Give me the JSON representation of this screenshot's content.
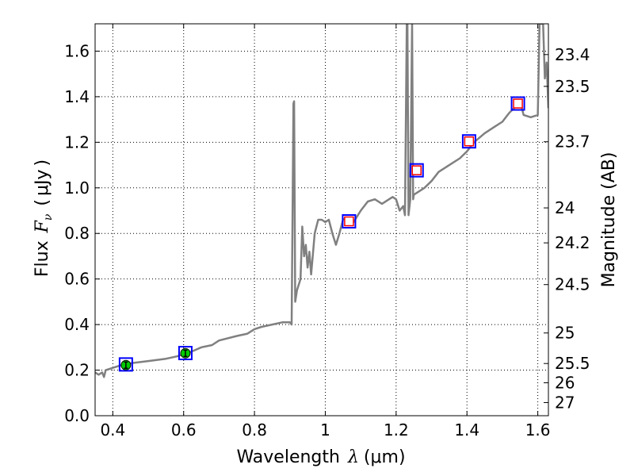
{
  "chart_data": {
    "type": "line",
    "title": "",
    "xlabel": "Wavelength",
    "xlabel_symbol": "λ",
    "xlabel_unit": "μm",
    "ylabel": "Flux",
    "ylabel_symbol": "F",
    "ylabel_subscript": "ν",
    "ylabel_unit": "μJy",
    "y2label": "Magnitude (AB)",
    "xlim": [
      0.35,
      1.63
    ],
    "ylim": [
      0.0,
      1.72
    ],
    "xticks": [
      "0.4",
      "0.6",
      "0.8",
      "1",
      "1.2",
      "1.4",
      "1.6"
    ],
    "xtick_values": [
      0.4,
      0.6,
      0.8,
      1.0,
      1.2,
      1.4,
      1.6
    ],
    "yticks": [
      "0.0",
      "0.2",
      "0.4",
      "0.6",
      "0.8",
      "1.0",
      "1.2",
      "1.4",
      "1.6"
    ],
    "ytick_values": [
      0.0,
      0.2,
      0.4,
      0.6,
      0.8,
      1.0,
      1.2,
      1.4,
      1.6
    ],
    "y2ticks": [
      "23.4",
      "23.5",
      "23.7",
      "24",
      "24.2",
      "24.5",
      "25",
      "25.5",
      "26",
      "27"
    ],
    "y2tick_values": [
      23.4,
      23.5,
      23.7,
      24,
      24.2,
      24.5,
      25,
      25.5,
      26,
      27
    ],
    "grid": true,
    "series": [
      {
        "kind": "spectrum",
        "color": "#808080",
        "points": [
          [
            0.35,
            0.19
          ],
          [
            0.36,
            0.18
          ],
          [
            0.37,
            0.19
          ],
          [
            0.375,
            0.17
          ],
          [
            0.38,
            0.2
          ],
          [
            0.4,
            0.21
          ],
          [
            0.42,
            0.22
          ],
          [
            0.45,
            0.23
          ],
          [
            0.5,
            0.24
          ],
          [
            0.55,
            0.25
          ],
          [
            0.58,
            0.26
          ],
          [
            0.6,
            0.27
          ],
          [
            0.62,
            0.28
          ],
          [
            0.65,
            0.3
          ],
          [
            0.68,
            0.31
          ],
          [
            0.7,
            0.33
          ],
          [
            0.75,
            0.35
          ],
          [
            0.78,
            0.36
          ],
          [
            0.8,
            0.38
          ],
          [
            0.82,
            0.39
          ],
          [
            0.85,
            0.4
          ],
          [
            0.88,
            0.41
          ],
          [
            0.9,
            0.41
          ],
          [
            0.905,
            0.4
          ],
          [
            0.91,
            1.37
          ],
          [
            0.912,
            1.38
          ],
          [
            0.915,
            0.5
          ],
          [
            0.92,
            0.55
          ],
          [
            0.93,
            0.6
          ],
          [
            0.935,
            0.83
          ],
          [
            0.94,
            0.7
          ],
          [
            0.945,
            0.75
          ],
          [
            0.95,
            0.65
          ],
          [
            0.955,
            0.72
          ],
          [
            0.96,
            0.62
          ],
          [
            0.97,
            0.8
          ],
          [
            0.98,
            0.86
          ],
          [
            0.99,
            0.86
          ],
          [
            1.0,
            0.85
          ],
          [
            1.01,
            0.86
          ],
          [
            1.02,
            0.8
          ],
          [
            1.03,
            0.75
          ],
          [
            1.04,
            0.8
          ],
          [
            1.05,
            0.86
          ],
          [
            1.06,
            0.87
          ],
          [
            1.08,
            0.85
          ],
          [
            1.1,
            0.9
          ],
          [
            1.12,
            0.94
          ],
          [
            1.14,
            0.95
          ],
          [
            1.16,
            0.93
          ],
          [
            1.18,
            0.95
          ],
          [
            1.19,
            0.96
          ],
          [
            1.2,
            0.95
          ],
          [
            1.21,
            0.9
          ],
          [
            1.22,
            0.92
          ],
          [
            1.225,
            0.88
          ],
          [
            1.23,
            1.72
          ],
          [
            1.232,
            1.72
          ],
          [
            1.235,
            0.88
          ],
          [
            1.24,
            0.95
          ],
          [
            1.245,
            1.72
          ],
          [
            1.248,
            0.95
          ],
          [
            1.25,
            0.97
          ],
          [
            1.28,
            1.0
          ],
          [
            1.3,
            1.03
          ],
          [
            1.32,
            1.07
          ],
          [
            1.35,
            1.1
          ],
          [
            1.38,
            1.13
          ],
          [
            1.4,
            1.16
          ],
          [
            1.42,
            1.2
          ],
          [
            1.45,
            1.24
          ],
          [
            1.48,
            1.27
          ],
          [
            1.5,
            1.29
          ],
          [
            1.52,
            1.33
          ],
          [
            1.54,
            1.36
          ],
          [
            1.55,
            1.38
          ],
          [
            1.56,
            1.32
          ],
          [
            1.58,
            1.31
          ],
          [
            1.6,
            1.32
          ],
          [
            1.605,
            1.72
          ],
          [
            1.615,
            1.72
          ],
          [
            1.62,
            1.48
          ],
          [
            1.625,
            1.55
          ],
          [
            1.63,
            1.35
          ]
        ]
      },
      {
        "kind": "observed_photometry",
        "color": "#00cc00",
        "edge": "#000000",
        "points": [
          [
            0.437,
            0.222
          ],
          [
            0.605,
            0.274
          ]
        ]
      },
      {
        "kind": "model_photometry_boxes",
        "color": "#0000ff",
        "points": [
          [
            0.437,
            0.225
          ],
          [
            0.605,
            0.275
          ],
          [
            1.067,
            0.853
          ],
          [
            1.258,
            1.077
          ],
          [
            1.406,
            1.204
          ],
          [
            1.544,
            1.37
          ]
        ]
      },
      {
        "kind": "model_photometry_inner",
        "color": "#ff0000",
        "points": [
          [
            1.067,
            0.853
          ],
          [
            1.258,
            1.077
          ],
          [
            1.406,
            1.204
          ],
          [
            1.544,
            1.37
          ]
        ]
      }
    ]
  }
}
